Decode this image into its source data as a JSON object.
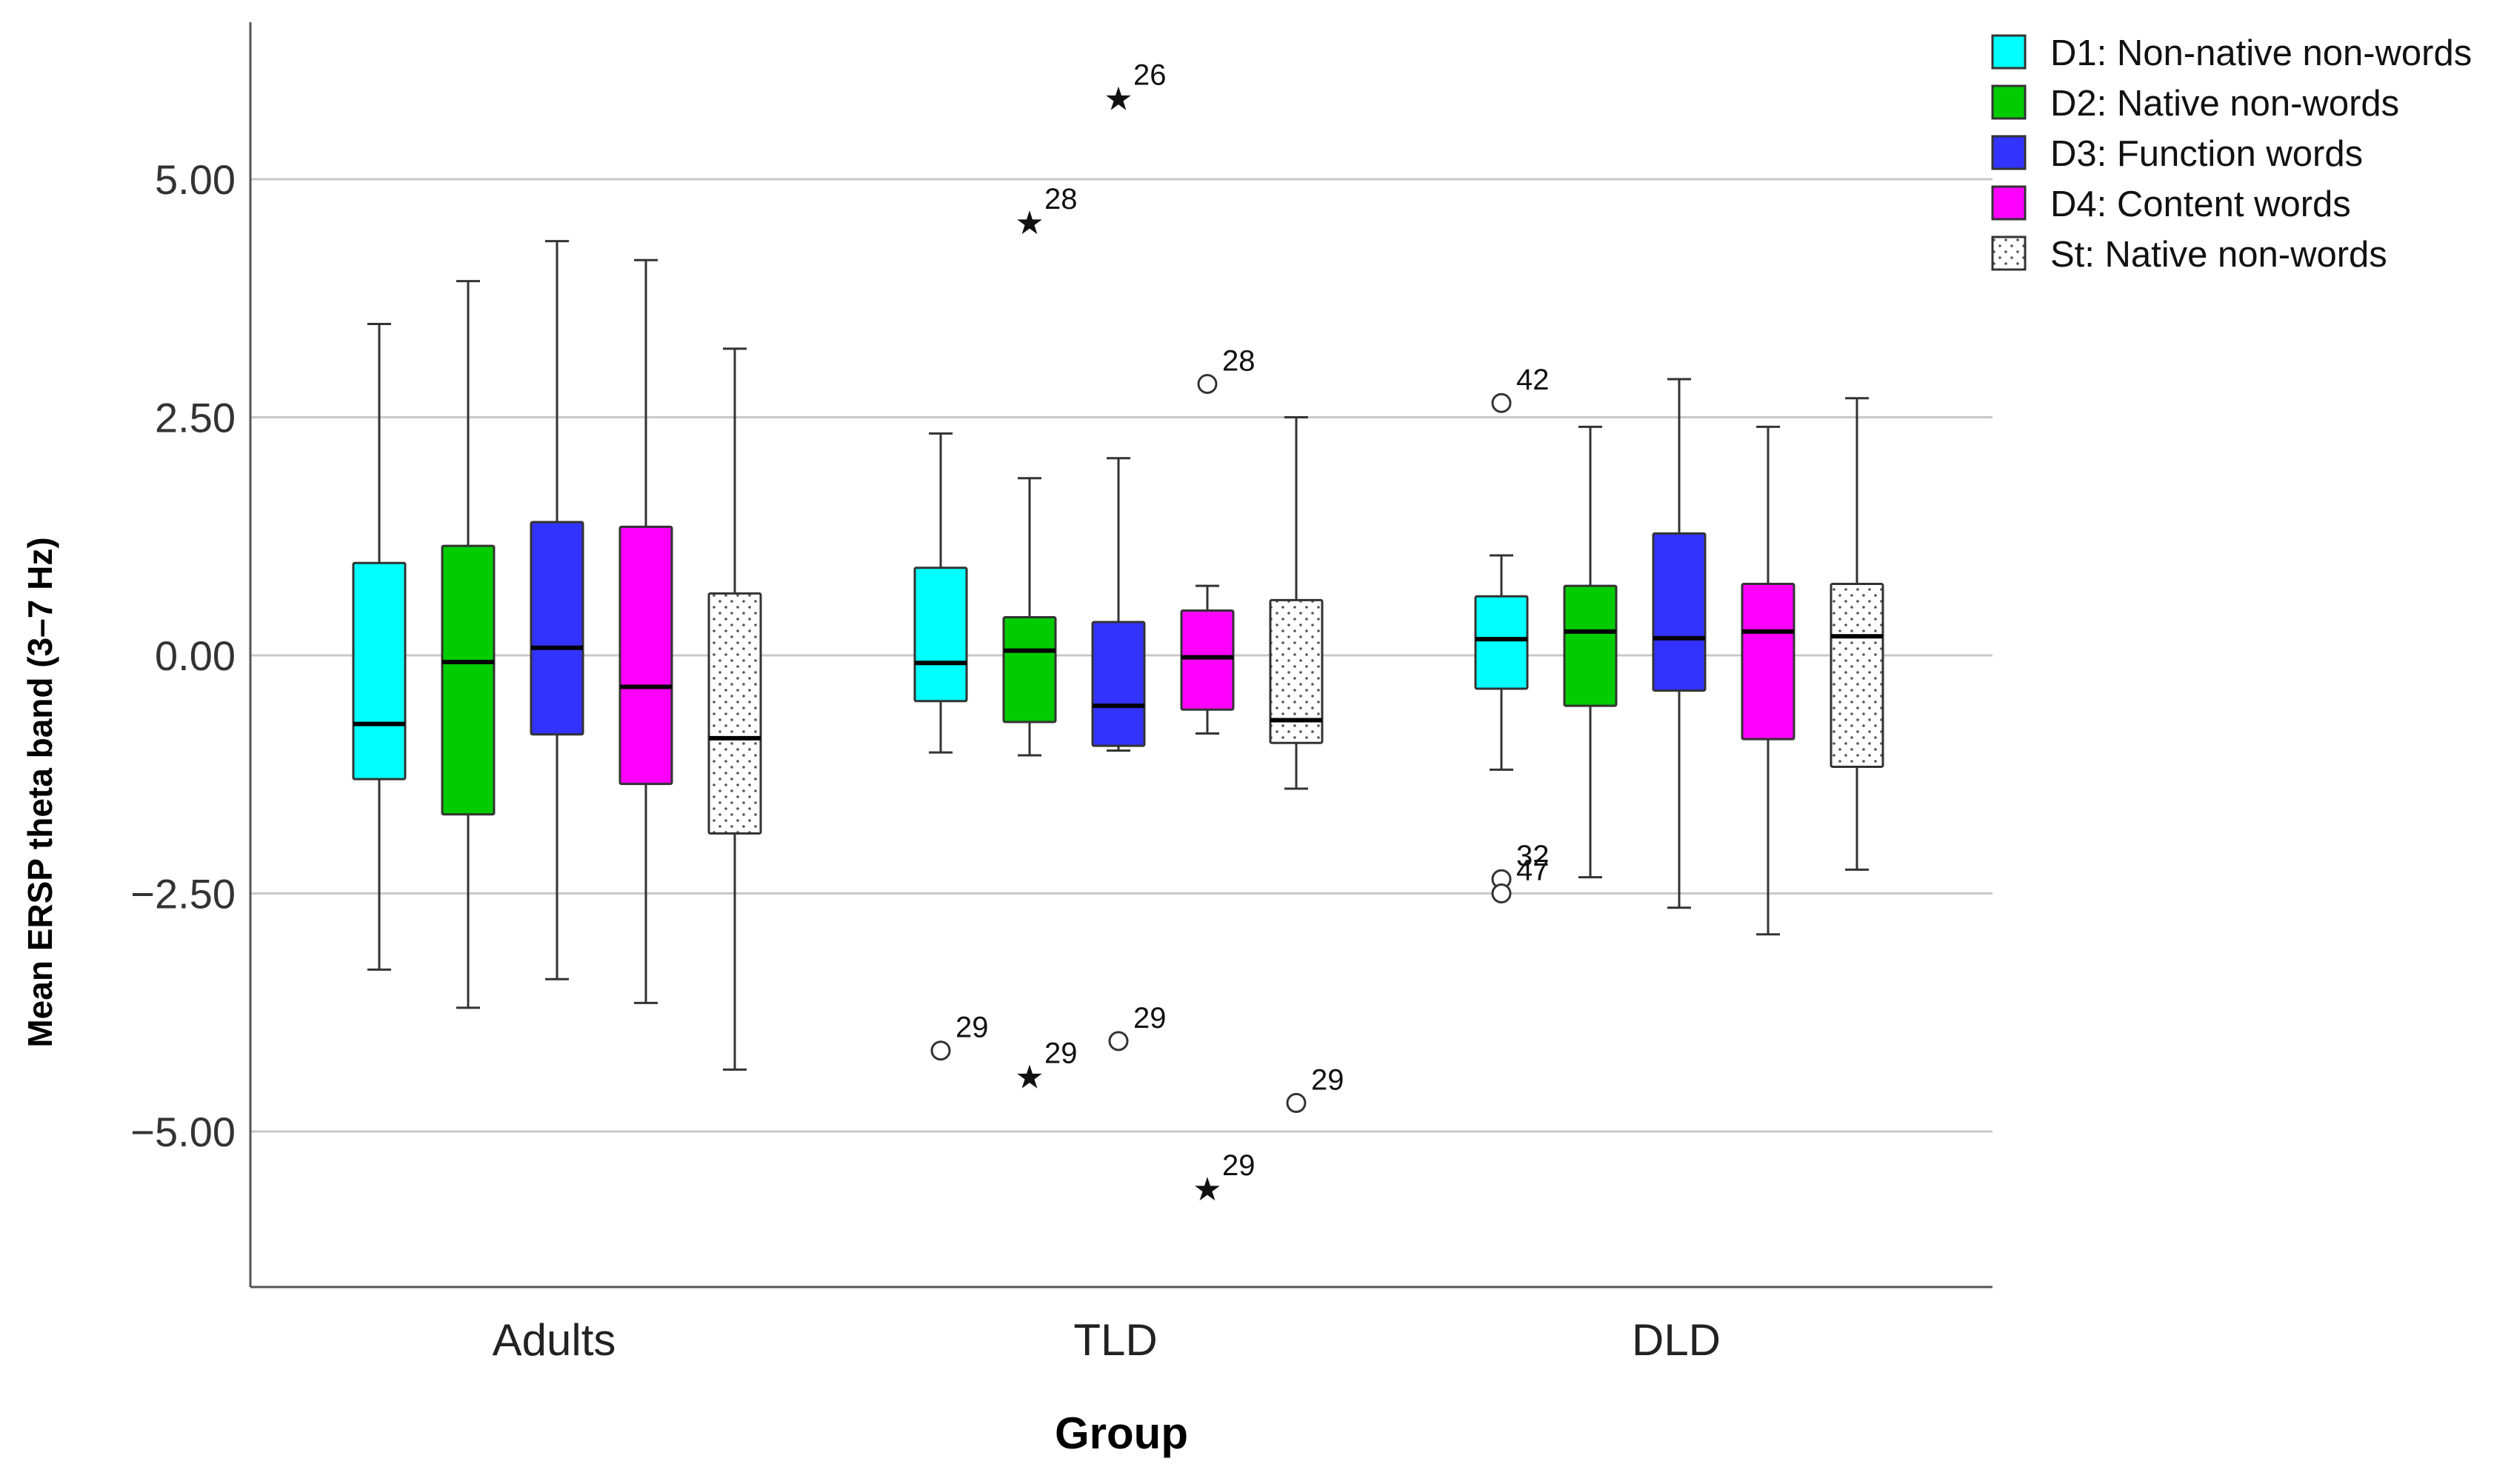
{
  "chart_data": {
    "type": "box",
    "xlabel": "Group",
    "ylabel": "Mean ERSP theta band (3–7 Hz)",
    "ylim": [
      -6.7,
      6.7
    ],
    "yticks": [
      {
        "value": 5,
        "label": "5.00"
      },
      {
        "value": 2.5,
        "label": "2.50"
      },
      {
        "value": 0,
        "label": "0.00"
      },
      {
        "value": -2.5,
        "label": "−2.50"
      },
      {
        "value": -5,
        "label": "−5.00"
      }
    ],
    "grid": true,
    "legend_position": "top-right",
    "categories": [
      "Adults",
      "TLD",
      "DLD"
    ],
    "series": [
      {
        "name": "D1: Non-native non-words",
        "color": "#00FFFF",
        "pattern": "solid",
        "boxes": [
          {
            "min": -3.3,
            "q1": -1.3,
            "median": -0.72,
            "q3": 0.97,
            "max": 3.48
          },
          {
            "min": -1.02,
            "q1": -0.48,
            "median": -0.08,
            "q3": 0.92,
            "max": 2.33
          },
          {
            "min": -1.2,
            "q1": -0.35,
            "median": 0.17,
            "q3": 0.62,
            "max": 1.05
          }
        ]
      },
      {
        "name": "D2: Native non-words",
        "color": "#00CC00",
        "pattern": "solid",
        "boxes": [
          {
            "min": -3.7,
            "q1": -1.67,
            "median": -0.07,
            "q3": 1.15,
            "max": 3.93
          },
          {
            "min": -1.05,
            "q1": -0.7,
            "median": 0.05,
            "q3": 0.4,
            "max": 1.86
          },
          {
            "min": -2.33,
            "q1": -0.53,
            "median": 0.25,
            "q3": 0.73,
            "max": 2.4
          }
        ]
      },
      {
        "name": "D3: Function words",
        "color": "#3333FF",
        "pattern": "solid",
        "boxes": [
          {
            "min": -3.4,
            "q1": -0.83,
            "median": 0.08,
            "q3": 1.4,
            "max": 4.35
          },
          {
            "min": -1.0,
            "q1": -0.95,
            "median": -0.53,
            "q3": 0.35,
            "max": 2.07
          },
          {
            "min": -2.65,
            "q1": -0.37,
            "median": 0.18,
            "q3": 1.28,
            "max": 2.9
          }
        ]
      },
      {
        "name": "D4: Content words",
        "color": "#FF00FF",
        "pattern": "solid",
        "boxes": [
          {
            "min": -3.65,
            "q1": -1.35,
            "median": -0.33,
            "q3": 1.35,
            "max": 4.15
          },
          {
            "min": -0.82,
            "q1": -0.57,
            "median": -0.02,
            "q3": 0.47,
            "max": 0.73
          },
          {
            "min": -2.93,
            "q1": -0.88,
            "median": 0.25,
            "q3": 0.75,
            "max": 2.4
          }
        ]
      },
      {
        "name": "St: Native non-words",
        "color": "#FFFFFF",
        "pattern": "dots",
        "boxes": [
          {
            "min": -4.35,
            "q1": -1.87,
            "median": -0.87,
            "q3": 0.65,
            "max": 3.22
          },
          {
            "min": -1.4,
            "q1": -0.92,
            "median": -0.68,
            "q3": 0.58,
            "max": 2.5
          },
          {
            "min": -2.25,
            "q1": -1.17,
            "median": 0.2,
            "q3": 0.75,
            "max": 2.7
          }
        ]
      }
    ],
    "outliers": [
      {
        "group": 1,
        "series": 1,
        "y": 4.55,
        "marker": "star",
        "label": "28"
      },
      {
        "group": 1,
        "series": 1,
        "y": -4.42,
        "marker": "star",
        "label": "29"
      },
      {
        "group": 1,
        "series": 2,
        "y": 5.85,
        "marker": "star",
        "label": "26"
      },
      {
        "group": 1,
        "series": 2,
        "y": -4.05,
        "marker": "circle",
        "label": "29"
      },
      {
        "group": 1,
        "series": 0,
        "y": -4.15,
        "marker": "circle",
        "label": "29"
      },
      {
        "group": 1,
        "series": 3,
        "y": 2.85,
        "marker": "circle",
        "label": "28"
      },
      {
        "group": 1,
        "series": 3,
        "y": -5.6,
        "marker": "star",
        "label": "29"
      },
      {
        "group": 1,
        "series": 4,
        "y": -4.7,
        "marker": "circle",
        "label": "29"
      },
      {
        "group": 2,
        "series": 0,
        "y": 2.65,
        "marker": "circle",
        "label": "42"
      },
      {
        "group": 2,
        "series": 0,
        "y": -2.35,
        "marker": "circle",
        "label": "32"
      },
      {
        "group": 2,
        "series": 0,
        "y": -2.5,
        "marker": "circle",
        "label": "47"
      }
    ]
  }
}
